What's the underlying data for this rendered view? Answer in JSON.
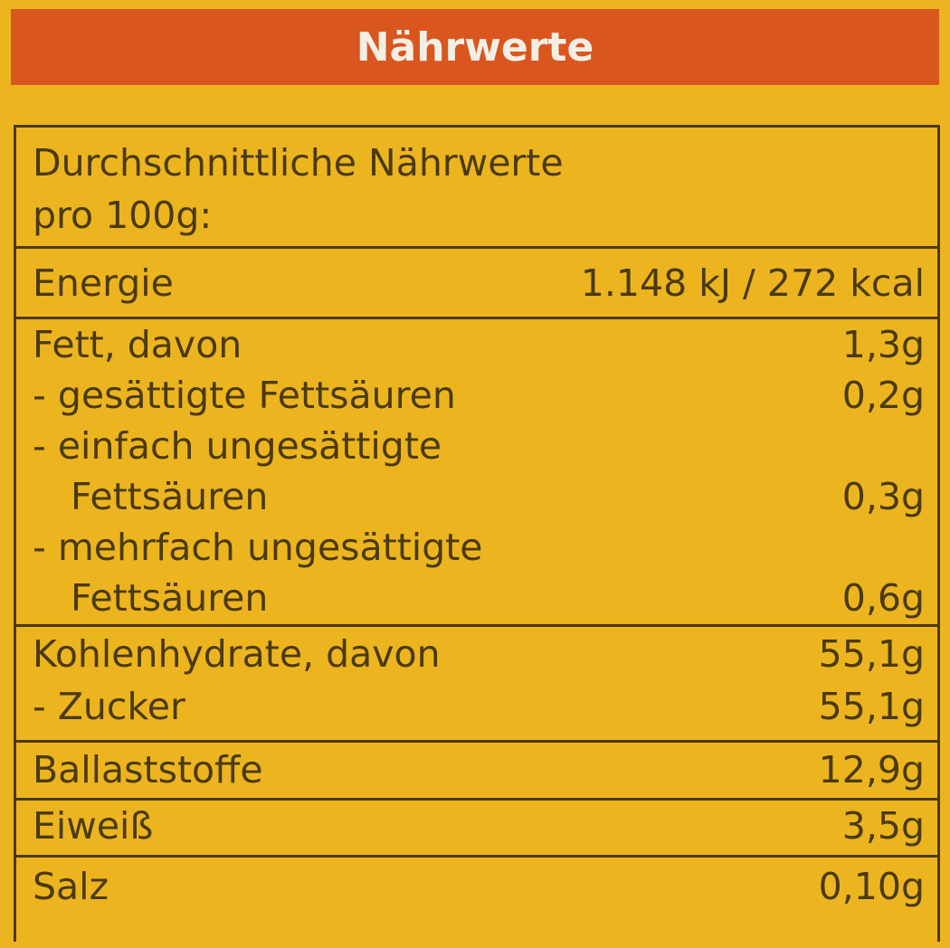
{
  "banner": {
    "title": "Nährwerte"
  },
  "header": {
    "line1": "Durchschnittliche Nährwerte",
    "line2": "pro 100g:"
  },
  "rows": {
    "energie": {
      "label": "Energie",
      "value": "1.148 kJ / 272 kcal"
    },
    "fett": {
      "label": "Fett, davon",
      "value": "1,3g"
    },
    "gesaettigte": {
      "label": "- gesättigte Fettsäuren",
      "value": "0,2g"
    },
    "einfach": {
      "label": "- einfach ungesättigte",
      "label2": "Fettsäuren",
      "value": "0,3g"
    },
    "mehrfach": {
      "label": "- mehrfach ungesättigte",
      "label2": "Fettsäuren",
      "value": "0,6g"
    },
    "kohlenhydrate": {
      "label": "Kohlenhydrate, davon",
      "value": "55,1g"
    },
    "zucker": {
      "label": "- Zucker",
      "value": "55,1g"
    },
    "ballaststoffe": {
      "label": "Ballaststoffe",
      "value": "12,9g"
    },
    "eiweiss": {
      "label": "Eiweiß",
      "value": "3,5g"
    },
    "salz": {
      "label": "Salz",
      "value": "0,10g"
    }
  },
  "colors": {
    "background": "#ecb520",
    "banner": "#d9561f",
    "text": "#4b3a0e"
  }
}
